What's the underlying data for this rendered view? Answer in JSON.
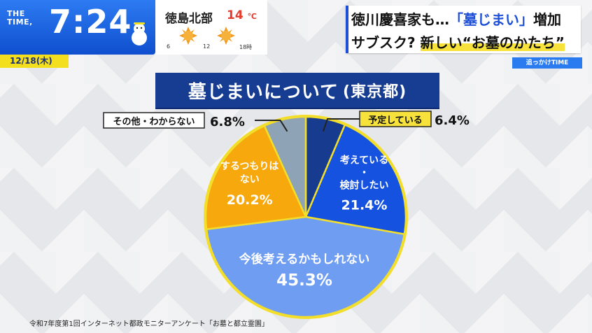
{
  "broadcast": {
    "logo_line1": "THE",
    "logo_line2": "TIME,",
    "clock": "7:24",
    "date": "12/18(木)"
  },
  "weather": {
    "region": "徳島北部",
    "temp": "14",
    "unit": "℃",
    "hours": [
      "6",
      "12",
      "18時"
    ],
    "icons": [
      "sun-icon",
      "sun-icon"
    ]
  },
  "headline": {
    "line1_a": "徳川慶喜家も…",
    "line1_b": "「墓じまい」",
    "line1_c": "増加",
    "line2_a": "サブスク? ",
    "line2_b": "新しい“お墓のかたち”"
  },
  "corner_tag": "追っかけTIME",
  "chart_data": {
    "type": "pie",
    "title": "墓じまいについて",
    "subtitle": "(東京都)",
    "slices": [
      {
        "label": "予定している",
        "value": 6.4,
        "value_text": "6.4%",
        "color": "#163b8f"
      },
      {
        "label": "考えている・検討したい",
        "label_lines": [
          "考えている",
          "・",
          "検討したい"
        ],
        "value": 21.4,
        "value_text": "21.4%",
        "color": "#1552e0"
      },
      {
        "label": "今後考えるかもしれない",
        "label_lines": [
          "今後考えるかもしれない"
        ],
        "value": 45.3,
        "value_text": "45.3%",
        "color": "#6f9df2"
      },
      {
        "label": "するつもりはない",
        "label_lines": [
          "するつもりは",
          "ない"
        ],
        "value": 20.2,
        "value_text": "20.2%",
        "color": "#f6a80c"
      },
      {
        "label": "その他・わからない",
        "value": 6.8,
        "value_text": "6.8%",
        "color": "#8ea3b6"
      }
    ],
    "border_color": "#f2de2b"
  },
  "source": "令和7年度第1回インターネット都政モニターアンケート「お墓と都立霊園」"
}
